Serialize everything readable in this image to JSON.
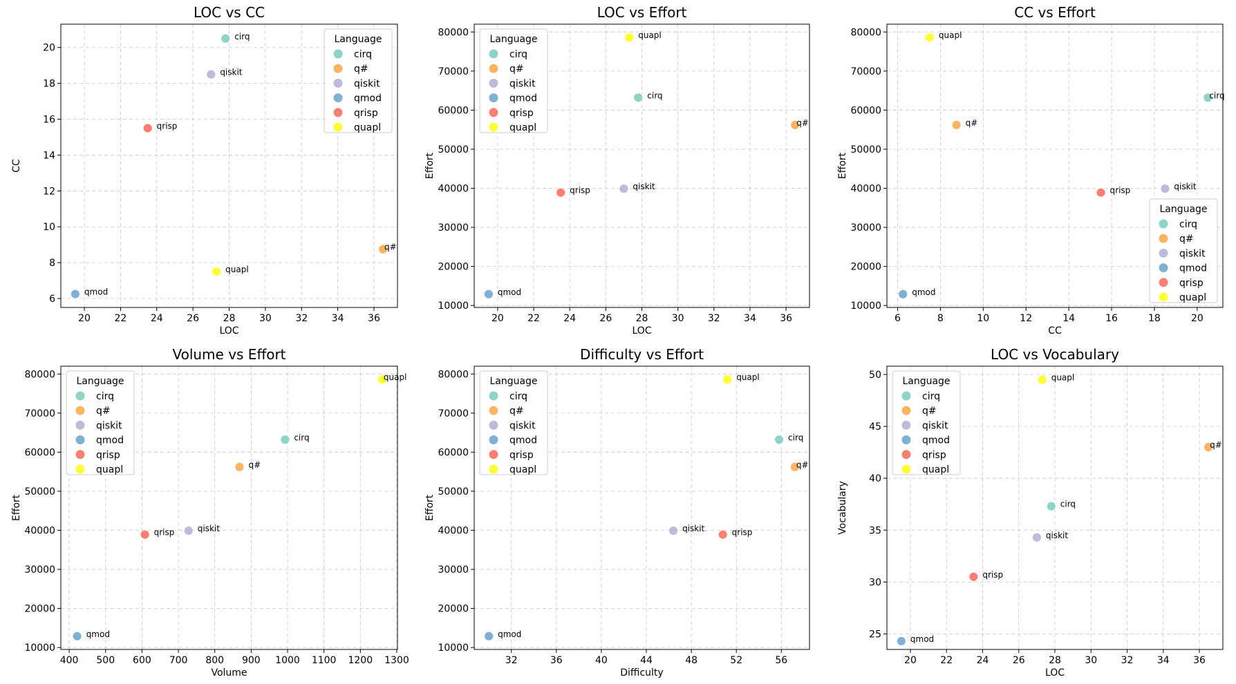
{
  "colors": {
    "cirq": "#8dd3c7",
    "q#": "#fdb462",
    "qiskit": "#bebada",
    "qmod": "#80b1d3",
    "qrisp": "#fb8072",
    "quapl": "#ffff33"
  },
  "legend": {
    "title": "Language",
    "entries": [
      "cirq",
      "q#",
      "qiskit",
      "qmod",
      "qrisp",
      "quapl"
    ]
  },
  "chart_data": [
    {
      "type": "scatter",
      "title": "LOC vs CC",
      "xlabel": "LOC",
      "ylabel": "CC",
      "xlim": [
        18.7,
        37.3
      ],
      "ylim": [
        5.5,
        21.3
      ],
      "xticks": [
        20,
        22,
        24,
        26,
        28,
        30,
        32,
        34,
        36
      ],
      "yticks": [
        6,
        8,
        10,
        12,
        14,
        16,
        18,
        20
      ],
      "grid": true,
      "legend_position": "upper right",
      "points": [
        {
          "label": "cirq",
          "x": 27.8,
          "y": 20.5
        },
        {
          "label": "q#",
          "x": 36.5,
          "y": 8.75
        },
        {
          "label": "qiskit",
          "x": 27.0,
          "y": 18.5
        },
        {
          "label": "qmod",
          "x": 19.5,
          "y": 6.25
        },
        {
          "label": "qrisp",
          "x": 23.5,
          "y": 15.5
        },
        {
          "label": "quapl",
          "x": 27.3,
          "y": 7.5
        }
      ]
    },
    {
      "type": "scatter",
      "title": "LOC vs Effort",
      "xlabel": "LOC",
      "ylabel": "Effort",
      "xlim": [
        18.7,
        37.3
      ],
      "ylim": [
        9500,
        82000
      ],
      "xticks": [
        20,
        22,
        24,
        26,
        28,
        30,
        32,
        34,
        36
      ],
      "yticks": [
        10000,
        20000,
        30000,
        40000,
        50000,
        60000,
        70000,
        80000
      ],
      "grid": true,
      "legend_position": "upper left",
      "points": [
        {
          "label": "cirq",
          "x": 27.8,
          "y": 63200
        },
        {
          "label": "q#",
          "x": 36.5,
          "y": 56200
        },
        {
          "label": "qiskit",
          "x": 27.0,
          "y": 39900
        },
        {
          "label": "qmod",
          "x": 19.5,
          "y": 12900
        },
        {
          "label": "qrisp",
          "x": 23.5,
          "y": 38900
        },
        {
          "label": "quapl",
          "x": 27.3,
          "y": 78600
        }
      ]
    },
    {
      "type": "scatter",
      "title": "CC vs Effort",
      "xlabel": "CC",
      "ylabel": "Effort",
      "xlim": [
        5.5,
        21.2
      ],
      "ylim": [
        9500,
        82000
      ],
      "xticks": [
        6,
        8,
        10,
        12,
        14,
        16,
        18,
        20
      ],
      "yticks": [
        10000,
        20000,
        30000,
        40000,
        50000,
        60000,
        70000,
        80000
      ],
      "grid": true,
      "legend_position": "lower right",
      "points": [
        {
          "label": "cirq",
          "x": 20.5,
          "y": 63200
        },
        {
          "label": "q#",
          "x": 8.75,
          "y": 56200
        },
        {
          "label": "qiskit",
          "x": 18.5,
          "y": 39900
        },
        {
          "label": "qmod",
          "x": 6.25,
          "y": 12900
        },
        {
          "label": "qrisp",
          "x": 15.5,
          "y": 38900
        },
        {
          "label": "quapl",
          "x": 7.5,
          "y": 78600
        }
      ]
    },
    {
      "type": "scatter",
      "title": "Volume vs Effort",
      "xlabel": "Volume",
      "ylabel": "Effort",
      "xlim": [
        377,
        1302
      ],
      "ylim": [
        9500,
        82000
      ],
      "xticks": [
        400,
        500,
        600,
        700,
        800,
        900,
        1000,
        1100,
        1200,
        1300
      ],
      "yticks": [
        10000,
        20000,
        30000,
        40000,
        50000,
        60000,
        70000,
        80000
      ],
      "grid": true,
      "legend_position": "upper left",
      "points": [
        {
          "label": "cirq",
          "x": 993,
          "y": 63200
        },
        {
          "label": "q#",
          "x": 868,
          "y": 56200
        },
        {
          "label": "qiskit",
          "x": 728,
          "y": 39900
        },
        {
          "label": "qmod",
          "x": 422,
          "y": 12900
        },
        {
          "label": "qrisp",
          "x": 608,
          "y": 38900
        },
        {
          "label": "quapl",
          "x": 1260,
          "y": 78600
        }
      ]
    },
    {
      "type": "scatter",
      "title": "Difficulty vs Effort",
      "xlabel": "Difficulty",
      "ylabel": "Effort",
      "xlim": [
        28.7,
        58.5
      ],
      "ylim": [
        9500,
        82000
      ],
      "xticks": [
        32,
        36,
        40,
        44,
        48,
        52,
        56
      ],
      "yticks": [
        10000,
        20000,
        30000,
        40000,
        50000,
        60000,
        70000,
        80000
      ],
      "grid": true,
      "legend_position": "upper left",
      "points": [
        {
          "label": "cirq",
          "x": 55.8,
          "y": 63200
        },
        {
          "label": "q#",
          "x": 57.2,
          "y": 56200
        },
        {
          "label": "qiskit",
          "x": 46.4,
          "y": 39900
        },
        {
          "label": "qmod",
          "x": 30.0,
          "y": 12900
        },
        {
          "label": "qrisp",
          "x": 50.8,
          "y": 38900
        },
        {
          "label": "quapl",
          "x": 51.2,
          "y": 78600
        }
      ]
    },
    {
      "type": "scatter",
      "title": "LOC vs Vocabulary",
      "xlabel": "LOC",
      "ylabel": "Vocabulary",
      "xlim": [
        18.7,
        37.3
      ],
      "ylim": [
        23.5,
        50.8
      ],
      "xticks": [
        20,
        22,
        24,
        26,
        28,
        30,
        32,
        34,
        36
      ],
      "yticks": [
        25,
        30,
        35,
        40,
        45,
        50
      ],
      "grid": true,
      "legend_position": "upper left",
      "points": [
        {
          "label": "cirq",
          "x": 27.8,
          "y": 37.3
        },
        {
          "label": "q#",
          "x": 36.5,
          "y": 43.0
        },
        {
          "label": "qiskit",
          "x": 27.0,
          "y": 34.3
        },
        {
          "label": "qmod",
          "x": 19.5,
          "y": 24.3
        },
        {
          "label": "qrisp",
          "x": 23.5,
          "y": 30.5
        },
        {
          "label": "quapl",
          "x": 27.3,
          "y": 49.5
        }
      ]
    }
  ]
}
